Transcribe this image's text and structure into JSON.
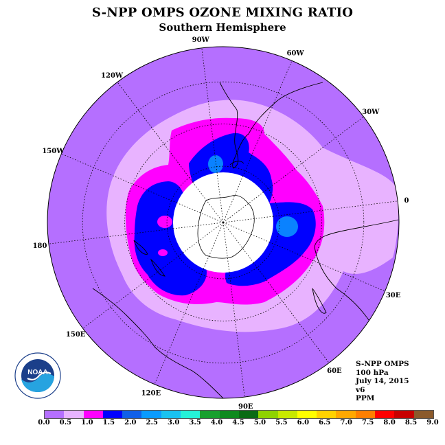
{
  "header": {
    "title": "S-NPP OMPS OZONE MIXING RATIO",
    "subtitle": "Southern Hemisphere"
  },
  "map": {
    "longitude_labels": [
      "90W",
      "60W",
      "30W",
      "0",
      "30E",
      "60E",
      "90E",
      "120E",
      "150E",
      "180",
      "150W",
      "120W"
    ],
    "colors": {
      "background_low": "#b56fff",
      "light_lavender": "#e8b3ff",
      "magenta": "#ff00ff",
      "blue": "#0000ff",
      "light_blue": "#0a82ff",
      "polar_cap": "#ffffff"
    }
  },
  "info": {
    "instrument": "S-NPP OMPS",
    "pressure": "100 hPa",
    "date": "July 14, 2015",
    "version": "v6",
    "units": "PPM"
  },
  "colorbar": {
    "colors": [
      "#b56fff",
      "#e8b3ff",
      "#ff00ff",
      "#0000ff",
      "#1060e8",
      "#0a9bff",
      "#19c2f0",
      "#25f2d8",
      "#18a02e",
      "#0e8a1e",
      "#0a6b14",
      "#8fd200",
      "#c8e800",
      "#ffff00",
      "#ffd200",
      "#ffa800",
      "#ff7f00",
      "#ff0000",
      "#c80000",
      "#8b5a2b"
    ],
    "tick_labels": [
      "0.0",
      "0.5",
      "1.0",
      "1.5",
      "2.0",
      "2.5",
      "3.0",
      "3.5",
      "4.0",
      "4.5",
      "5.0",
      "5.5",
      "6.0",
      "6.5",
      "7.0",
      "7.5",
      "8.0",
      "8.5",
      "9.0"
    ]
  },
  "logo": {
    "text": "NOAA",
    "icon": "noaa-logo-icon"
  }
}
